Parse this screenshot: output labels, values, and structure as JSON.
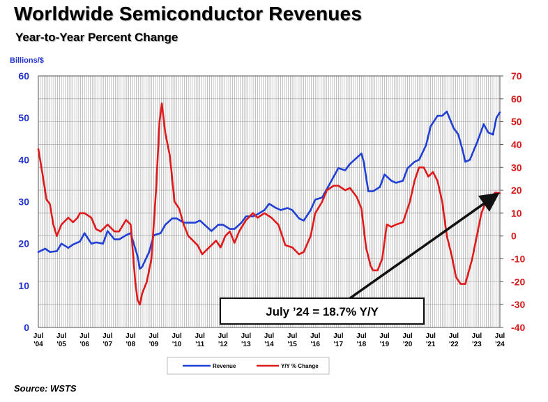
{
  "title": "Worldwide Semiconductor Revenues",
  "subtitle": "Year-to-Year Percent Change",
  "source": "Source: WSTS",
  "colors": {
    "revenue": "#1f3fd6",
    "yoy": "#e0191b",
    "left_axis_text": "#2233cc",
    "right_axis_text": "#d61a1a",
    "grid": "#9a9a9a"
  },
  "chart_data": {
    "type": "line",
    "title": "Worldwide Semiconductor Revenues",
    "subtitle": "Year-to-Year Percent Change",
    "ylabel_left": "Billions/$",
    "ylim_left": [
      0,
      60
    ],
    "yticks_left": [
      "0",
      "10",
      "20",
      "30",
      "40",
      "50",
      "60"
    ],
    "ylim_right": [
      -40,
      70
    ],
    "yticks_right": [
      "-40",
      "-30",
      "-20",
      "-10",
      "0",
      "10",
      "20",
      "30",
      "40",
      "50",
      "60",
      "70"
    ],
    "x_range": [
      2004.5,
      2024.5
    ],
    "xticks": [
      {
        "top": "Jul",
        "bottom": "'04"
      },
      {
        "top": "Jul",
        "bottom": "'05"
      },
      {
        "top": "Jul",
        "bottom": "'06"
      },
      {
        "top": "Jul",
        "bottom": "'07"
      },
      {
        "top": "Jul",
        "bottom": "'08"
      },
      {
        "top": "Jul",
        "bottom": "'09"
      },
      {
        "top": "Jul",
        "bottom": "'10"
      },
      {
        "top": "Jul",
        "bottom": "'11"
      },
      {
        "top": "Jul",
        "bottom": "'12"
      },
      {
        "top": "Jul",
        "bottom": "'13"
      },
      {
        "top": "Jul",
        "bottom": "'14"
      },
      {
        "top": "Jul",
        "bottom": "'15"
      },
      {
        "top": "Jul",
        "bottom": "'16"
      },
      {
        "top": "Jul",
        "bottom": "'17"
      },
      {
        "top": "Jul",
        "bottom": "'18"
      },
      {
        "top": "Jul",
        "bottom": "'19"
      },
      {
        "top": "Jul",
        "bottom": "'20"
      },
      {
        "top": "Jul",
        "bottom": "'21"
      },
      {
        "top": "Jul",
        "bottom": "'22"
      },
      {
        "top": "Jul",
        "bottom": "'23"
      },
      {
        "top": "Jul",
        "bottom": "'24"
      }
    ],
    "grid": true,
    "legend_position": "bottom-center",
    "annotation": "July ’24 = 18.7% Y/Y",
    "series": [
      {
        "name": "Revenue",
        "axis": "left",
        "points": [
          [
            2004.5,
            18.0
          ],
          [
            2004.8,
            18.8
          ],
          [
            2005.0,
            18.0
          ],
          [
            2005.3,
            18.2
          ],
          [
            2005.5,
            20.0
          ],
          [
            2005.8,
            19.0
          ],
          [
            2006.0,
            19.8
          ],
          [
            2006.3,
            20.5
          ],
          [
            2006.5,
            22.5
          ],
          [
            2006.8,
            20.0
          ],
          [
            2007.0,
            20.3
          ],
          [
            2007.3,
            20.0
          ],
          [
            2007.5,
            23.0
          ],
          [
            2007.8,
            21.0
          ],
          [
            2008.0,
            21.0
          ],
          [
            2008.3,
            22.0
          ],
          [
            2008.5,
            22.5
          ],
          [
            2008.8,
            17.0
          ],
          [
            2008.9,
            14.0
          ],
          [
            2009.0,
            14.5
          ],
          [
            2009.3,
            18.0
          ],
          [
            2009.5,
            22.0
          ],
          [
            2009.8,
            22.5
          ],
          [
            2010.0,
            24.5
          ],
          [
            2010.3,
            26.0
          ],
          [
            2010.5,
            26.0
          ],
          [
            2010.8,
            25.0
          ],
          [
            2011.0,
            25.0
          ],
          [
            2011.3,
            25.0
          ],
          [
            2011.5,
            25.5
          ],
          [
            2011.8,
            24.0
          ],
          [
            2012.0,
            23.0
          ],
          [
            2012.3,
            24.5
          ],
          [
            2012.5,
            24.5
          ],
          [
            2012.8,
            23.5
          ],
          [
            2013.0,
            23.5
          ],
          [
            2013.3,
            25.0
          ],
          [
            2013.5,
            26.5
          ],
          [
            2013.8,
            26.5
          ],
          [
            2014.0,
            27.0
          ],
          [
            2014.3,
            28.0
          ],
          [
            2014.5,
            29.5
          ],
          [
            2014.8,
            28.5
          ],
          [
            2015.0,
            28.0
          ],
          [
            2015.3,
            28.5
          ],
          [
            2015.5,
            28.0
          ],
          [
            2015.8,
            26.0
          ],
          [
            2016.0,
            25.5
          ],
          [
            2016.3,
            28.0
          ],
          [
            2016.5,
            30.5
          ],
          [
            2016.8,
            31.0
          ],
          [
            2017.0,
            33.0
          ],
          [
            2017.3,
            36.0
          ],
          [
            2017.5,
            38.0
          ],
          [
            2017.8,
            37.5
          ],
          [
            2018.0,
            39.0
          ],
          [
            2018.3,
            40.5
          ],
          [
            2018.5,
            41.5
          ],
          [
            2018.6,
            39.5
          ],
          [
            2018.8,
            32.5
          ],
          [
            2019.0,
            32.5
          ],
          [
            2019.3,
            33.5
          ],
          [
            2019.5,
            36.5
          ],
          [
            2019.8,
            35.0
          ],
          [
            2020.0,
            34.5
          ],
          [
            2020.3,
            35.0
          ],
          [
            2020.5,
            38.0
          ],
          [
            2020.8,
            39.5
          ],
          [
            2021.0,
            40.0
          ],
          [
            2021.3,
            43.5
          ],
          [
            2021.5,
            48.0
          ],
          [
            2021.8,
            50.5
          ],
          [
            2022.0,
            50.5
          ],
          [
            2022.2,
            51.5
          ],
          [
            2022.5,
            47.5
          ],
          [
            2022.7,
            46.0
          ],
          [
            2022.9,
            42.0
          ],
          [
            2023.0,
            39.5
          ],
          [
            2023.2,
            40.0
          ],
          [
            2023.5,
            44.0
          ],
          [
            2023.8,
            48.5
          ],
          [
            2024.0,
            46.5
          ],
          [
            2024.2,
            46.0
          ],
          [
            2024.35,
            50.0
          ],
          [
            2024.5,
            51.3
          ]
        ]
      },
      {
        "name": "Y/Y % Change",
        "axis": "right",
        "points": [
          [
            2004.5,
            38
          ],
          [
            2004.7,
            26
          ],
          [
            2004.85,
            16
          ],
          [
            2005.0,
            14
          ],
          [
            2005.15,
            5
          ],
          [
            2005.3,
            0
          ],
          [
            2005.5,
            5
          ],
          [
            2005.8,
            8
          ],
          [
            2006.0,
            6
          ],
          [
            2006.2,
            8
          ],
          [
            2006.3,
            10
          ],
          [
            2006.5,
            10
          ],
          [
            2006.8,
            8
          ],
          [
            2007.0,
            3
          ],
          [
            2007.2,
            2
          ],
          [
            2007.5,
            5
          ],
          [
            2007.8,
            2
          ],
          [
            2008.0,
            2
          ],
          [
            2008.3,
            7
          ],
          [
            2008.5,
            5
          ],
          [
            2008.7,
            -20
          ],
          [
            2008.8,
            -28
          ],
          [
            2008.9,
            -30
          ],
          [
            2009.0,
            -25
          ],
          [
            2009.2,
            -20
          ],
          [
            2009.4,
            -10
          ],
          [
            2009.6,
            20
          ],
          [
            2009.75,
            50
          ],
          [
            2009.85,
            58
          ],
          [
            2010.0,
            45
          ],
          [
            2010.2,
            35
          ],
          [
            2010.4,
            15
          ],
          [
            2010.6,
            12
          ],
          [
            2010.8,
            5
          ],
          [
            2011.0,
            0
          ],
          [
            2011.2,
            -2
          ],
          [
            2011.4,
            -4
          ],
          [
            2011.6,
            -8
          ],
          [
            2011.8,
            -6
          ],
          [
            2012.0,
            -4
          ],
          [
            2012.2,
            -2
          ],
          [
            2012.4,
            -5
          ],
          [
            2012.6,
            0
          ],
          [
            2012.8,
            2
          ],
          [
            2013.0,
            -3
          ],
          [
            2013.2,
            2
          ],
          [
            2013.5,
            7
          ],
          [
            2013.8,
            10
          ],
          [
            2014.0,
            8
          ],
          [
            2014.3,
            10
          ],
          [
            2014.6,
            8
          ],
          [
            2014.9,
            5
          ],
          [
            2015.0,
            2
          ],
          [
            2015.2,
            -4
          ],
          [
            2015.5,
            -5
          ],
          [
            2015.8,
            -8
          ],
          [
            2016.0,
            -7
          ],
          [
            2016.3,
            0
          ],
          [
            2016.5,
            10
          ],
          [
            2016.8,
            15
          ],
          [
            2017.0,
            20
          ],
          [
            2017.3,
            22
          ],
          [
            2017.5,
            22
          ],
          [
            2017.8,
            20
          ],
          [
            2018.0,
            21
          ],
          [
            2018.3,
            17
          ],
          [
            2018.5,
            12
          ],
          [
            2018.7,
            -5
          ],
          [
            2018.9,
            -13
          ],
          [
            2019.0,
            -15
          ],
          [
            2019.2,
            -15
          ],
          [
            2019.4,
            -10
          ],
          [
            2019.6,
            5
          ],
          [
            2019.8,
            4
          ],
          [
            2020.0,
            5
          ],
          [
            2020.3,
            6
          ],
          [
            2020.6,
            15
          ],
          [
            2020.8,
            24
          ],
          [
            2021.0,
            30
          ],
          [
            2021.2,
            30
          ],
          [
            2021.4,
            26
          ],
          [
            2021.6,
            28
          ],
          [
            2021.8,
            24
          ],
          [
            2022.0,
            15
          ],
          [
            2022.2,
            0
          ],
          [
            2022.4,
            -8
          ],
          [
            2022.6,
            -18
          ],
          [
            2022.8,
            -21
          ],
          [
            2023.0,
            -21
          ],
          [
            2023.3,
            -10
          ],
          [
            2023.5,
            0
          ],
          [
            2023.7,
            10
          ],
          [
            2023.9,
            15
          ],
          [
            2024.1,
            17
          ],
          [
            2024.3,
            19
          ],
          [
            2024.5,
            18.7
          ]
        ]
      }
    ]
  },
  "legend": {
    "revenue_label": "Revenue",
    "yoy_label": "Y/Y % Change"
  }
}
